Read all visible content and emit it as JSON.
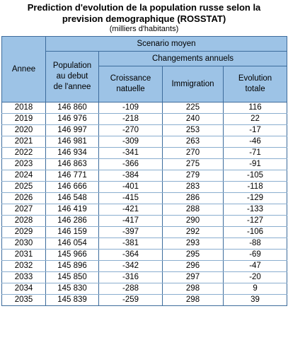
{
  "title_line1": "Prediction d'evolution de la population russe selon la",
  "title_line2": "prevision demographique (ROSSTAT)",
  "subtitle": "(milliers d'habitants)",
  "headers": {
    "year": "Annee",
    "scenario": "Scenario moyen",
    "population_l1": "Population",
    "population_l2": "au debut",
    "population_l3": "de l'annee",
    "changes": "Changements annuels",
    "natural_l1": "Croissance",
    "natural_l2": "natuelle",
    "immigration": "Immigration",
    "total_l1": "Evolution",
    "total_l2": "totale"
  },
  "rows": [
    {
      "year": "2018",
      "population": "146 860",
      "natural": "-109",
      "immigration": "225",
      "total": "116"
    },
    {
      "year": "2019",
      "population": "146 976",
      "natural": "-218",
      "immigration": "240",
      "total": "22"
    },
    {
      "year": "2020",
      "population": "146 997",
      "natural": "-270",
      "immigration": "253",
      "total": "-17"
    },
    {
      "year": "2021",
      "population": "146 981",
      "natural": "-309",
      "immigration": "263",
      "total": "-46"
    },
    {
      "year": "2022",
      "population": "146 934",
      "natural": "-341",
      "immigration": "270",
      "total": "-71"
    },
    {
      "year": "2023",
      "population": "146 863",
      "natural": "-366",
      "immigration": "275",
      "total": "-91"
    },
    {
      "year": "2024",
      "population": "146 771",
      "natural": "-384",
      "immigration": "279",
      "total": "-105"
    },
    {
      "year": "2025",
      "population": "146 666",
      "natural": "-401",
      "immigration": "283",
      "total": "-118"
    },
    {
      "year": "2026",
      "population": "146 548",
      "natural": "-415",
      "immigration": "286",
      "total": "-129"
    },
    {
      "year": "2027",
      "population": "146 419",
      "natural": "-421",
      "immigration": "288",
      "total": "-133"
    },
    {
      "year": "2028",
      "population": "146 286",
      "natural": "-417",
      "immigration": "290",
      "total": "-127"
    },
    {
      "year": "2029",
      "population": "146 159",
      "natural": "-397",
      "immigration": "292",
      "total": "-106"
    },
    {
      "year": "2030",
      "population": "146 054",
      "natural": "-381",
      "immigration": "293",
      "total": "-88"
    },
    {
      "year": "2031",
      "population": "145 966",
      "natural": "-364",
      "immigration": "295",
      "total": "-69"
    },
    {
      "year": "2032",
      "population": "145 896",
      "natural": "-342",
      "immigration": "296",
      "total": "-47"
    },
    {
      "year": "2033",
      "population": "145 850",
      "natural": "-316",
      "immigration": "297",
      "total": "-20"
    },
    {
      "year": "2034",
      "population": "145 830",
      "natural": "-288",
      "immigration": "298",
      "total": "9"
    },
    {
      "year": "2035",
      "population": "145 839",
      "natural": "-259",
      "immigration": "298",
      "total": "39"
    }
  ]
}
